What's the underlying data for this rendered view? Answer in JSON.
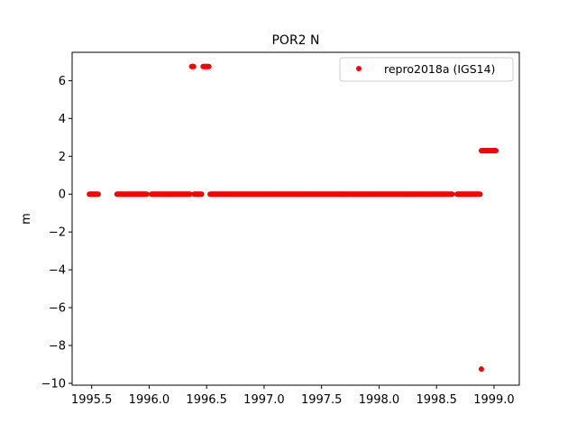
{
  "chart_data": {
    "type": "scatter",
    "title": "POR2 N",
    "xlabel": "",
    "ylabel": "m",
    "xlim": [
      1995.33,
      1999.22
    ],
    "ylim": [
      -10.1,
      7.5
    ],
    "xticks": [
      1995.5,
      1996.0,
      1996.5,
      1997.0,
      1997.5,
      1998.0,
      1998.5,
      1999.0
    ],
    "xtick_labels": [
      "1995.5",
      "1996.0",
      "1996.5",
      "1997.0",
      "1997.5",
      "1998.0",
      "1998.5",
      "1999.0"
    ],
    "yticks": [
      6,
      4,
      2,
      0,
      -2,
      -4,
      -6,
      -8,
      -10
    ],
    "ytick_labels": [
      "6",
      "4",
      "2",
      "0",
      "−2",
      "−4",
      "−6",
      "−8",
      "−10"
    ],
    "grid": false,
    "legend_position": "top-right",
    "series": [
      {
        "name": "repro2018a (IGS14)",
        "color": "#ff0000",
        "marker": "circle",
        "segments": [
          {
            "x_start": 1995.48,
            "x_end": 1995.56,
            "step": 0.0055,
            "y": 0
          },
          {
            "x_start": 1995.72,
            "x_end": 1995.98,
            "step": 0.0055,
            "y": 0
          },
          {
            "x_start": 1996.02,
            "x_end": 1996.36,
            "step": 0.0055,
            "y": 0
          },
          {
            "x_start": 1996.39,
            "x_end": 1996.46,
            "step": 0.0055,
            "y": 0
          },
          {
            "x_start": 1996.53,
            "x_end": 1998.64,
            "step": 0.0055,
            "y": 0
          },
          {
            "x_start": 1998.68,
            "x_end": 1998.88,
            "step": 0.0055,
            "y": 0
          },
          {
            "x_start": 1996.37,
            "x_end": 1996.39,
            "step": 0.0055,
            "y": 6.75
          },
          {
            "x_start": 1996.47,
            "x_end": 1996.52,
            "step": 0.0055,
            "y": 6.75
          },
          {
            "x_start": 1998.89,
            "x_end": 1999.02,
            "step": 0.0055,
            "y": 2.3
          }
        ],
        "points": [
          {
            "x": 1998.89,
            "y": -9.25
          }
        ]
      }
    ]
  }
}
